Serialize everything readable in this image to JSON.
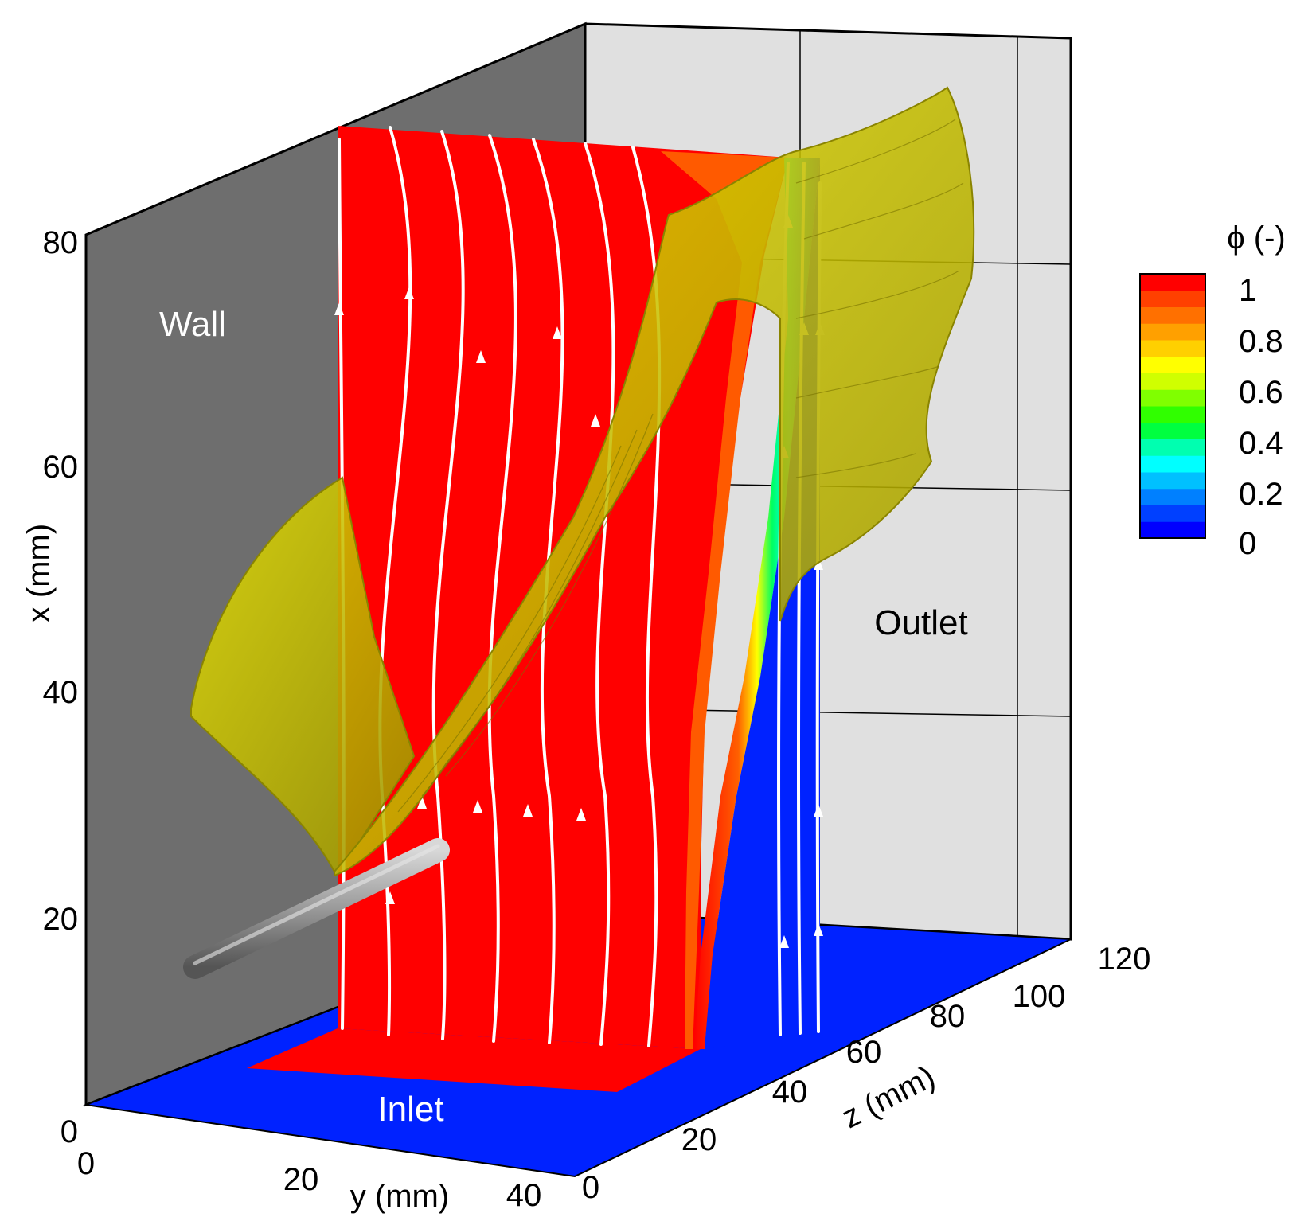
{
  "regions": {
    "wall": "Wall",
    "outlet": "Outlet",
    "inlet": "Inlet"
  },
  "axes": {
    "x": {
      "title": "x (mm)",
      "ticks": [
        "0",
        "20",
        "40",
        "60",
        "80"
      ]
    },
    "y": {
      "title": "y (mm)",
      "ticks": [
        "0",
        "20",
        "40"
      ]
    },
    "z": {
      "title": "z (mm)",
      "ticks": [
        "0",
        "20",
        "40",
        "60",
        "80",
        "100",
        "120"
      ]
    }
  },
  "colorbar": {
    "title": "ϕ (-)",
    "ticks": [
      "1",
      "0.8",
      "0.6",
      "0.4",
      "0.2",
      "0"
    ],
    "colors": [
      "#0000ff",
      "#0040ff",
      "#0080ff",
      "#00c0ff",
      "#00ffff",
      "#00ffb0",
      "#00ff40",
      "#30ff00",
      "#80ff00",
      "#d0ff00",
      "#ffff00",
      "#ffd000",
      "#ffa000",
      "#ff7000",
      "#ff4000",
      "#ff0000"
    ]
  },
  "colors": {
    "wall": "#6e6e6e",
    "outlet": "#e0e0e0",
    "liquid": "#ff0000",
    "gas": "#0022ff",
    "isosurface": "#c8c000",
    "streamline": "#ffffff"
  }
}
